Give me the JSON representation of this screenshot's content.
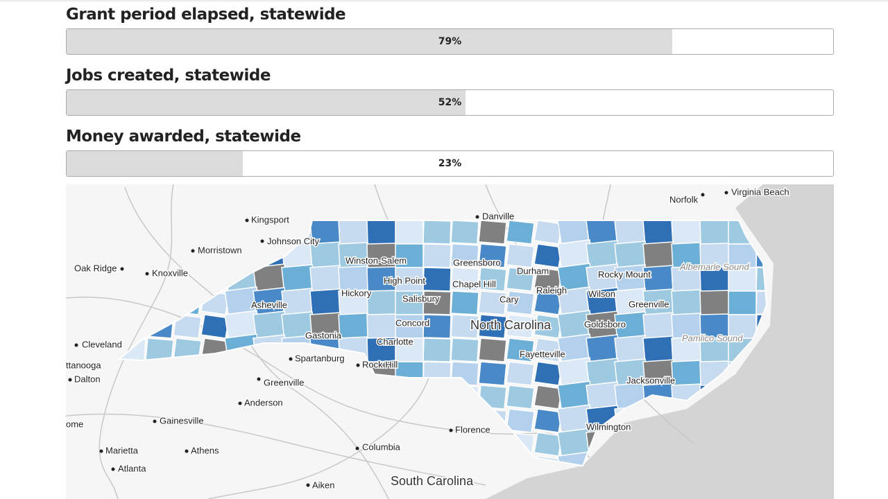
{
  "progress": [
    {
      "title": "Grant period elapsed, statewide",
      "value": 79,
      "label": "79%"
    },
    {
      "title": "Jobs created, statewide",
      "value": 52,
      "label": "52%"
    },
    {
      "title": "Money awarded, statewide",
      "value": 23,
      "label": "23%"
    }
  ],
  "map": {
    "places": [
      "Virginia Beach",
      "Norfolk",
      "Danville",
      "Kingsport",
      "Johnson City",
      "Morristown",
      "Oak Ridge",
      "Knoxville",
      "Winston-Salem",
      "Greensboro",
      "Durham",
      "Chapel Hill",
      "High Point",
      "Hickory",
      "Salisbury",
      "Asheville",
      "Rocky Mount",
      "Wilson",
      "Raleigh",
      "Cary",
      "Greenville",
      "North Carolina",
      "Concord",
      "Goldsboro",
      "Gastonia",
      "Charlotte",
      "Cleveland",
      "ttanooga",
      "Dalton",
      "Spartanburg",
      "Rock Hill",
      "Greenville",
      "Fayetteville",
      "Pamlico Sound",
      "Albemarle Sound",
      "Jacksonville",
      "Anderson",
      "Gainesville",
      "Florence",
      "Wilmington",
      "ome",
      "Marietta",
      "Athens",
      "Atlanta",
      "Columbia",
      "Aiken",
      "South Carolina"
    ]
  }
}
